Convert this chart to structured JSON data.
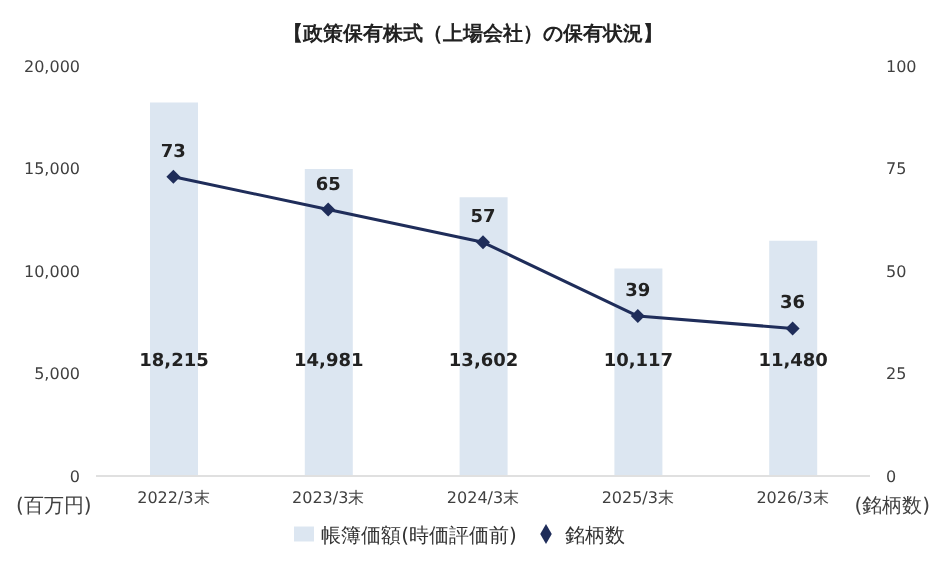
{
  "chart_data": {
    "type": "bar",
    "title": "【政策保有株式（上場会社）の保有状況】",
    "ylabel": "(百万円)",
    "y2label": "(銘柄数)",
    "categories": [
      "2022/3末",
      "2023/3末",
      "2024/3末",
      "2025/3末",
      "2026/3末"
    ],
    "series": [
      {
        "name": "帳簿価額(時価評価前)",
        "color": "#dce6f1",
        "values": [
          18215,
          14981,
          13602,
          10117,
          11480
        ],
        "value_labels": [
          "18,215",
          "14,981",
          "13,602",
          "10,117",
          "11,480"
        ]
      },
      {
        "name": "銘柄数",
        "type": "line",
        "axis": "y2",
        "color": "#1f2d5a",
        "marker": "diamond",
        "values": [
          73,
          65,
          57,
          39,
          36
        ]
      }
    ],
    "ylim": [
      0,
      20000
    ],
    "yticks": [
      0,
      {
        "value": 5000,
        "label": "5,000"
      },
      {
        "value": 10000,
        "label": "10,000"
      },
      {
        "value": 15000,
        "label": "15,000"
      },
      {
        "value": 20000,
        "label": "20,000"
      }
    ],
    "y2lim": [
      0,
      100
    ],
    "y2ticks": [
      0,
      25,
      50,
      75,
      100
    ],
    "data_labels": true,
    "legend": "bottom",
    "grid": false
  }
}
